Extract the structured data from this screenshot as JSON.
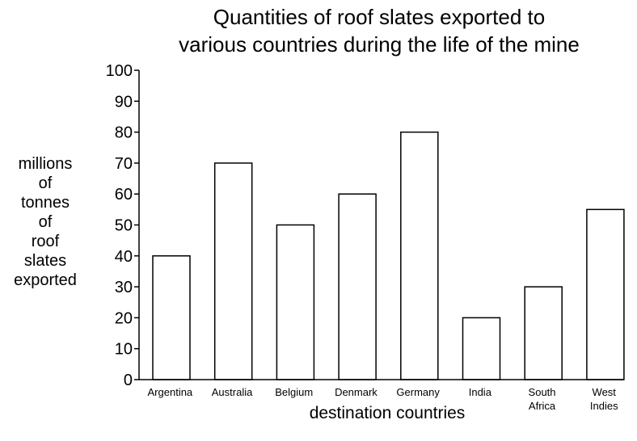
{
  "chart_data": {
    "type": "bar",
    "title": [
      "Quantities of roof slates exported to",
      "various countries during the life of the mine"
    ],
    "ylabel": [
      "millions",
      "of",
      "tonnes",
      "of",
      "roof",
      "slates",
      "exported"
    ],
    "xlabel": "destination countries",
    "categories": [
      [
        "Argentina"
      ],
      [
        "Australia"
      ],
      [
        "Belgium"
      ],
      [
        "Denmark"
      ],
      [
        "Germany"
      ],
      [
        "India"
      ],
      [
        "South",
        "Africa"
      ],
      [
        "West",
        "Indies"
      ]
    ],
    "values": [
      40,
      70,
      50,
      60,
      80,
      20,
      30,
      55
    ],
    "ylim": [
      0,
      100
    ],
    "yticks": [
      0,
      10,
      20,
      30,
      40,
      50,
      60,
      70,
      80,
      90,
      100
    ],
    "grid": false,
    "bar_fill": "#ffffff",
    "bar_stroke": "#000000"
  }
}
